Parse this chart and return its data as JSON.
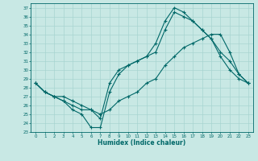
{
  "xlabel": "Humidex (Indice chaleur)",
  "bg_color": "#c8e8e4",
  "grid_color": "#a8d4d0",
  "line_color": "#006868",
  "xlim": [
    -0.5,
    23.5
  ],
  "ylim": [
    23,
    37.5
  ],
  "yticks": [
    23,
    24,
    25,
    26,
    27,
    28,
    29,
    30,
    31,
    32,
    33,
    34,
    35,
    36,
    37
  ],
  "xticks": [
    0,
    1,
    2,
    3,
    4,
    5,
    6,
    7,
    8,
    9,
    10,
    11,
    12,
    13,
    14,
    15,
    16,
    17,
    18,
    19,
    20,
    21,
    22,
    23
  ],
  "line1_x": [
    0,
    1,
    2,
    3,
    4,
    5,
    6,
    7,
    8,
    9,
    10,
    11,
    12,
    13,
    14,
    15,
    16,
    17,
    18,
    19,
    20,
    21,
    22,
    23
  ],
  "line1_y": [
    28.5,
    27.5,
    27.0,
    26.5,
    25.5,
    25.0,
    23.5,
    23.5,
    27.5,
    29.5,
    30.5,
    31.0,
    31.5,
    33.0,
    35.5,
    37.0,
    36.5,
    35.5,
    34.5,
    33.5,
    31.5,
    30.0,
    29.0,
    28.5
  ],
  "line2_x": [
    0,
    1,
    2,
    3,
    4,
    5,
    6,
    7,
    8,
    9,
    10,
    11,
    12,
    13,
    14,
    15,
    16,
    17,
    18,
    19,
    20,
    21,
    22,
    23
  ],
  "line2_y": [
    28.5,
    27.5,
    27.0,
    27.0,
    26.5,
    26.0,
    25.5,
    24.5,
    28.5,
    30.0,
    30.5,
    31.0,
    31.5,
    32.0,
    34.5,
    36.5,
    36.0,
    35.5,
    34.5,
    33.5,
    32.0,
    31.0,
    29.5,
    28.5
  ],
  "line3_x": [
    0,
    1,
    2,
    3,
    4,
    5,
    6,
    7,
    8,
    9,
    10,
    11,
    12,
    13,
    14,
    15,
    16,
    17,
    18,
    19,
    20,
    21,
    22,
    23
  ],
  "line3_y": [
    28.5,
    27.5,
    27.0,
    26.5,
    26.0,
    25.5,
    25.5,
    25.0,
    25.5,
    26.5,
    27.0,
    27.5,
    28.5,
    29.0,
    30.5,
    31.5,
    32.5,
    33.0,
    33.5,
    34.0,
    34.0,
    32.0,
    29.5,
    28.5
  ]
}
